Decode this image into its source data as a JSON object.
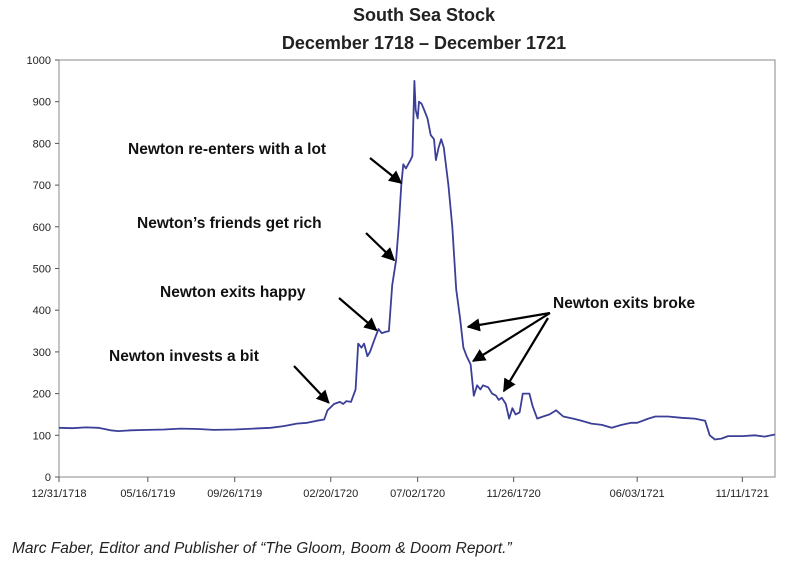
{
  "chart_data": {
    "type": "line",
    "title": "South Sea Stock",
    "subtitle": "December 1718 – December 1721",
    "xlabel": "",
    "ylabel": "",
    "ylim": [
      0,
      1000
    ],
    "yticks": [
      0,
      100,
      200,
      300,
      400,
      500,
      600,
      700,
      800,
      900,
      1000
    ],
    "xticks": [
      "12/31/1718",
      "05/16/1719",
      "09/26/1719",
      "02/20/1720",
      "07/02/1720",
      "11/26/1720",
      "06/03/1721",
      "11/11/1721"
    ],
    "xlim": [
      "1718-12-31",
      "1721-12-31"
    ],
    "grid": false,
    "line_color": "#3b3f98",
    "series": [
      {
        "name": "",
        "points": [
          [
            "1718-12-31",
            118
          ],
          [
            "1719-01-20",
            117
          ],
          [
            "1719-02-10",
            119
          ],
          [
            "1719-03-01",
            118
          ],
          [
            "1719-03-20",
            112
          ],
          [
            "1719-04-01",
            110
          ],
          [
            "1719-04-20",
            112
          ],
          [
            "1719-05-16",
            113
          ],
          [
            "1719-06-10",
            114
          ],
          [
            "1719-07-05",
            116
          ],
          [
            "1719-08-01",
            115
          ],
          [
            "1719-08-25",
            113
          ],
          [
            "1719-09-26",
            114
          ],
          [
            "1719-10-25",
            116
          ],
          [
            "1719-11-20",
            118
          ],
          [
            "1719-12-10",
            122
          ],
          [
            "1719-12-30",
            128
          ],
          [
            "1720-01-15",
            130
          ],
          [
            "1720-01-30",
            135
          ],
          [
            "1720-02-10",
            138
          ],
          [
            "1720-02-15",
            160
          ],
          [
            "1720-02-25",
            175
          ],
          [
            "1720-03-05",
            180
          ],
          [
            "1720-03-10",
            175
          ],
          [
            "1720-03-15",
            182
          ],
          [
            "1720-03-22",
            180
          ],
          [
            "1720-03-29",
            210
          ],
          [
            "1720-04-02",
            320
          ],
          [
            "1720-04-07",
            310
          ],
          [
            "1720-04-11",
            320
          ],
          [
            "1720-04-16",
            290
          ],
          [
            "1720-04-20",
            300
          ],
          [
            "1720-04-27",
            330
          ],
          [
            "1720-05-03",
            355
          ],
          [
            "1720-05-08",
            345
          ],
          [
            "1720-05-14",
            348
          ],
          [
            "1720-05-19",
            350
          ],
          [
            "1720-05-24",
            460
          ],
          [
            "1720-05-30",
            520
          ],
          [
            "1720-06-03",
            600
          ],
          [
            "1720-06-07",
            700
          ],
          [
            "1720-06-10",
            750
          ],
          [
            "1720-06-14",
            740
          ],
          [
            "1720-06-21",
            760
          ],
          [
            "1720-06-24",
            770
          ],
          [
            "1720-06-27",
            950
          ],
          [
            "1720-06-29",
            880
          ],
          [
            "1720-07-02",
            860
          ],
          [
            "1720-07-04",
            900
          ],
          [
            "1720-07-08",
            895
          ],
          [
            "1720-07-12",
            880
          ],
          [
            "1720-07-17",
            860
          ],
          [
            "1720-07-22",
            820
          ],
          [
            "1720-07-27",
            810
          ],
          [
            "1720-07-30",
            760
          ],
          [
            "1720-08-03",
            790
          ],
          [
            "1720-08-07",
            810
          ],
          [
            "1720-08-11",
            790
          ],
          [
            "1720-08-18",
            700
          ],
          [
            "1720-08-24",
            600
          ],
          [
            "1720-08-30",
            450
          ],
          [
            "1720-09-05",
            380
          ],
          [
            "1720-09-10",
            310
          ],
          [
            "1720-09-15",
            290
          ],
          [
            "1720-09-21",
            270
          ],
          [
            "1720-09-26",
            195
          ],
          [
            "1720-10-01",
            220
          ],
          [
            "1720-10-06",
            210
          ],
          [
            "1720-10-10",
            220
          ],
          [
            "1720-10-18",
            215
          ],
          [
            "1720-10-24",
            200
          ],
          [
            "1720-10-30",
            195
          ],
          [
            "1720-11-03",
            185
          ],
          [
            "1720-11-08",
            190
          ],
          [
            "1720-11-14",
            175
          ],
          [
            "1720-11-19",
            140
          ],
          [
            "1720-11-24",
            165
          ],
          [
            "1720-11-29",
            150
          ],
          [
            "1720-12-05",
            155
          ],
          [
            "1720-12-10",
            200
          ],
          [
            "1720-12-20",
            200
          ],
          [
            "1720-12-25",
            170
          ],
          [
            "1721-01-01",
            140
          ],
          [
            "1721-01-10",
            145
          ],
          [
            "1721-01-20",
            150
          ],
          [
            "1721-01-30",
            160
          ],
          [
            "1721-02-10",
            145
          ],
          [
            "1721-02-25",
            140
          ],
          [
            "1721-03-10",
            135
          ],
          [
            "1721-03-25",
            128
          ],
          [
            "1721-04-10",
            125
          ],
          [
            "1721-04-25",
            118
          ],
          [
            "1721-05-10",
            125
          ],
          [
            "1721-05-25",
            130
          ],
          [
            "1721-06-03",
            130
          ],
          [
            "1721-06-20",
            140
          ],
          [
            "1721-07-01",
            145
          ],
          [
            "1721-07-20",
            145
          ],
          [
            "1721-08-10",
            142
          ],
          [
            "1721-08-30",
            140
          ],
          [
            "1721-09-15",
            135
          ],
          [
            "1721-09-22",
            100
          ],
          [
            "1721-09-30",
            90
          ],
          [
            "1721-10-10",
            92
          ],
          [
            "1721-10-20",
            98
          ],
          [
            "1721-11-11",
            98
          ],
          [
            "1721-11-30",
            100
          ],
          [
            "1721-12-15",
            97
          ],
          [
            "1721-12-31",
            102
          ]
        ]
      }
    ],
    "annotations": [
      {
        "text": "Newton invests a bit",
        "target": [
          "1720-02-20",
          178
        ]
      },
      {
        "text": "Newton exits happy",
        "target": [
          "1720-05-03",
          352
        ]
      },
      {
        "text": "Newton’s friends get rich",
        "target": [
          "1720-05-30",
          520
        ]
      },
      {
        "text": "Newton re-enters with a lot",
        "target": [
          "1720-06-10",
          705
        ]
      },
      {
        "text": "Newton exits broke",
        "targets": [
          [
            "1720-09-20",
            360
          ],
          [
            "1720-09-28",
            278
          ],
          [
            "1720-11-14",
            206
          ]
        ]
      }
    ]
  },
  "caption": "Marc Faber, Editor and Publisher of “The Gloom, Boom & Doom Report.”"
}
